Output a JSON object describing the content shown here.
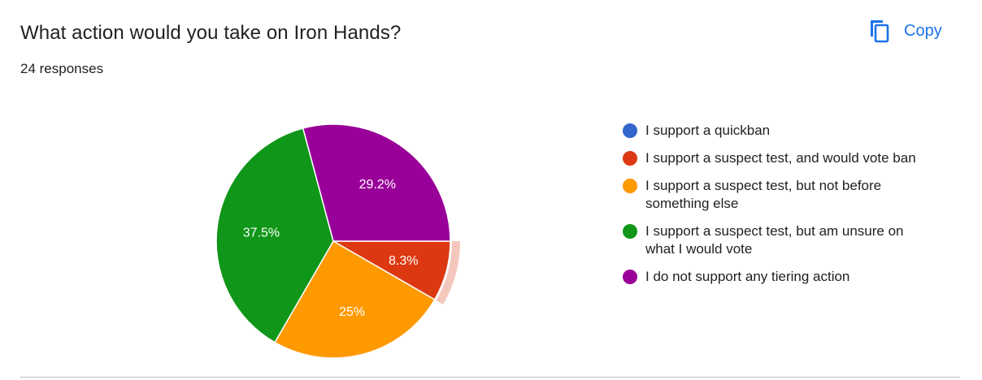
{
  "header": {
    "title": "What action would you take on Iron Hands?",
    "responses": "24 responses",
    "copy_label": "Copy"
  },
  "icons": {
    "copy": "copy-icon"
  },
  "colors": {
    "accent": "#1a73e8",
    "highlight": "#f4c7bd"
  },
  "chart_data": {
    "type": "pie",
    "total_responses": 24,
    "legend_placement": "right",
    "start": "3 o'clock, clockwise",
    "highlighted_slice": 1,
    "slices": [
      {
        "label": "I support a quickban",
        "value": 0,
        "percent": 0,
        "percent_label": "",
        "color": "#3366cc"
      },
      {
        "label": "I support a suspect test, and would vote ban",
        "value": 2,
        "percent": 8.3,
        "percent_label": "8.3%",
        "color": "#dc3912"
      },
      {
        "label": "I support a suspect test, but not before something else",
        "value": 6,
        "percent": 25,
        "percent_label": "25%",
        "color": "#ff9900"
      },
      {
        "label": "I support a suspect test, but am unsure on what I would vote",
        "value": 9,
        "percent": 37.5,
        "percent_label": "37.5%",
        "color": "#109618"
      },
      {
        "label": "I do not support any tiering action",
        "value": 7,
        "percent": 29.2,
        "percent_label": "29.2%",
        "color": "#990099"
      }
    ]
  }
}
